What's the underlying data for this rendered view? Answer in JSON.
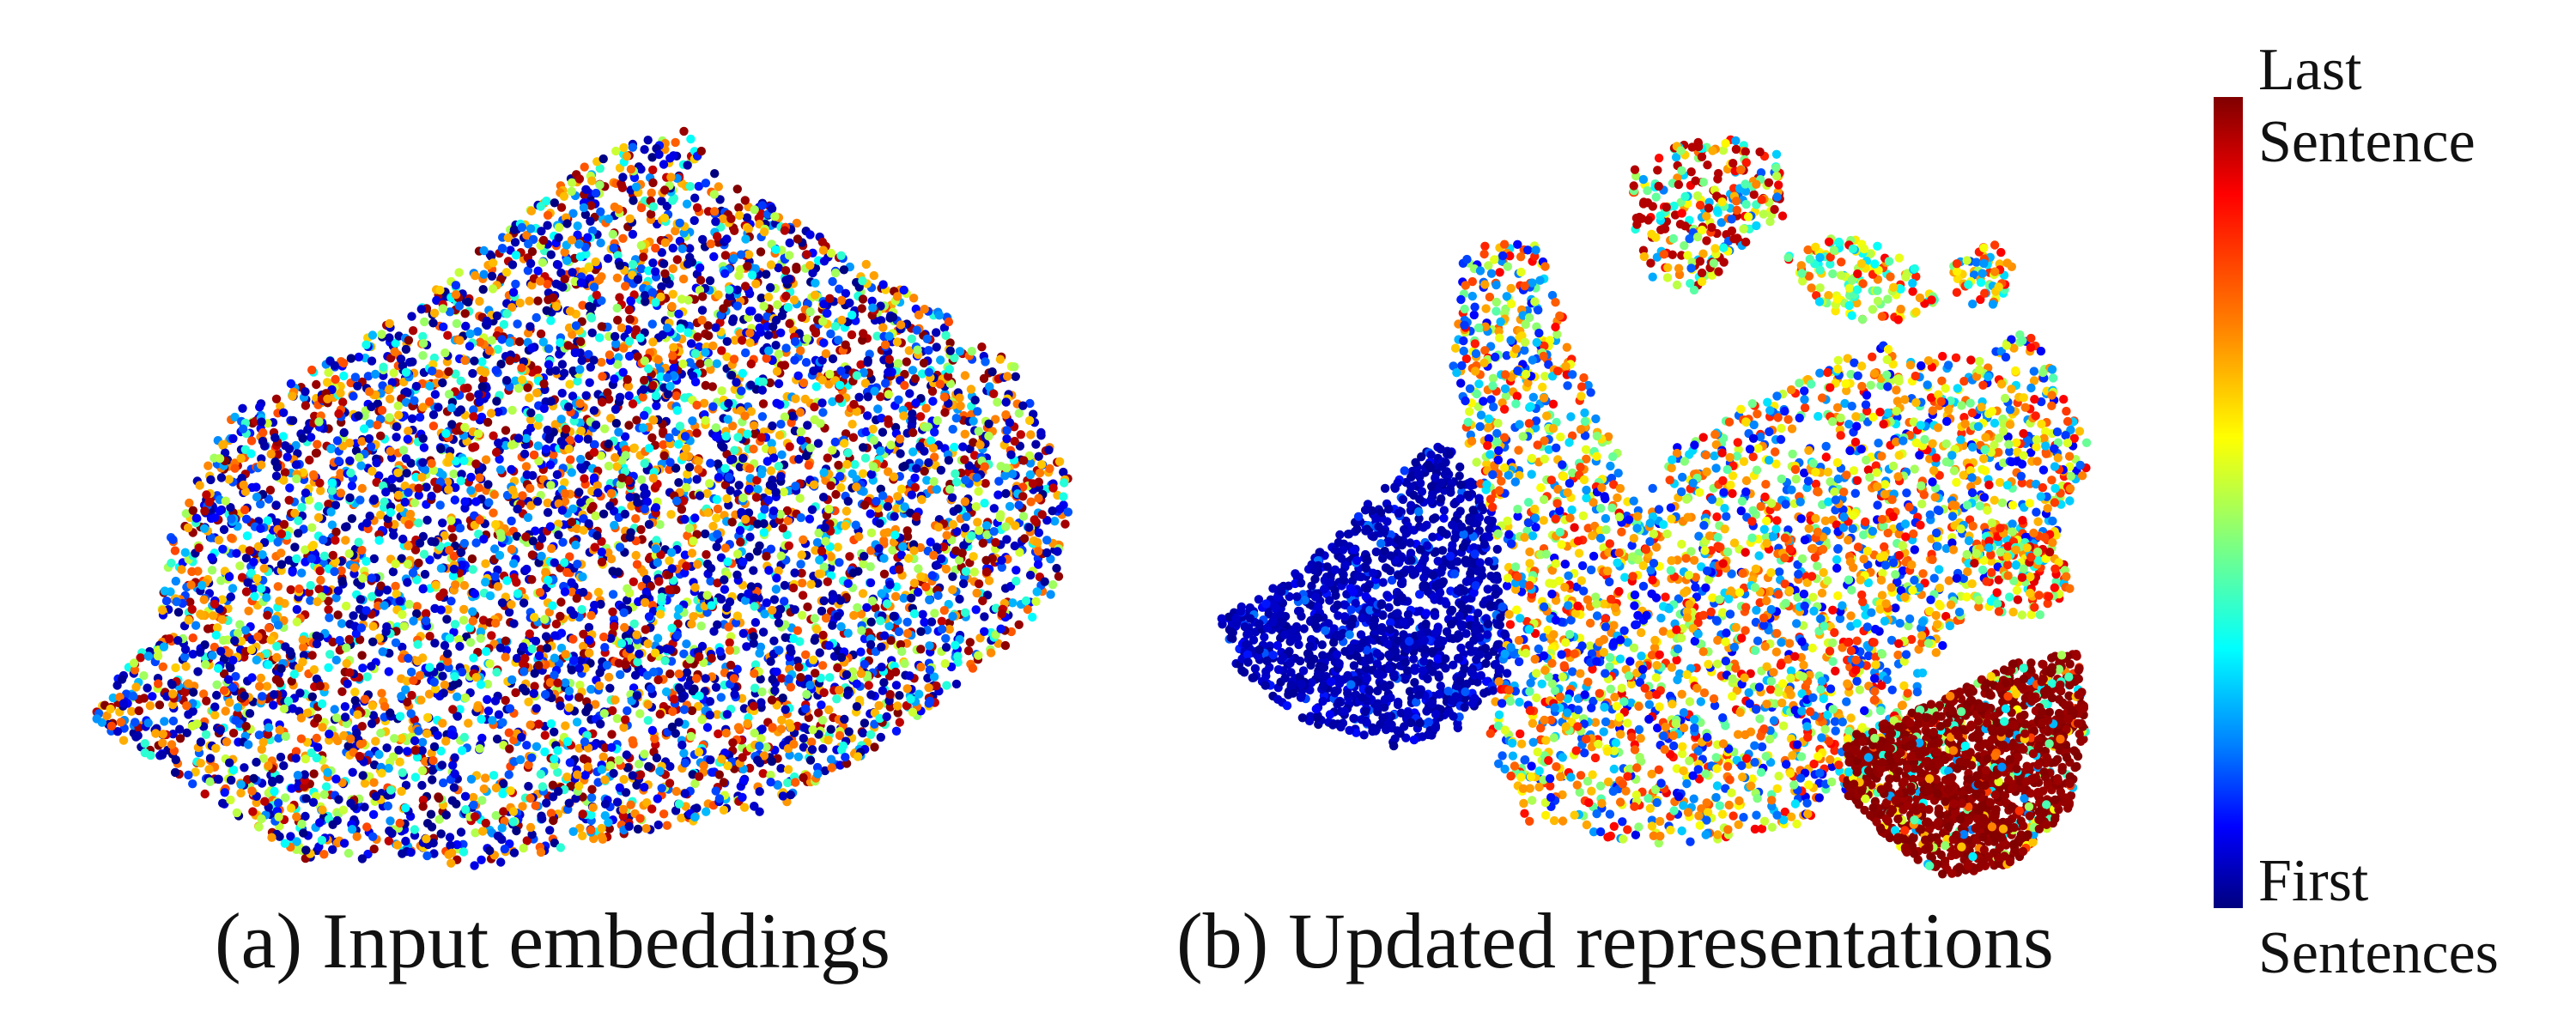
{
  "chart_data": [
    {
      "type": "scatter",
      "title": "(a) Input embeddings",
      "description_colors": "points colored by sentence position, thoroughly mixed",
      "seed": 7,
      "colorscale": "jet"
    },
    {
      "type": "scatter",
      "title": "(b) Updated representations",
      "seed": 19,
      "colorscale": "jet"
    }
  ],
  "colorbar": {
    "top_label": [
      "Last",
      "Sentence"
    ],
    "bottom_label": [
      "First",
      "Sentences"
    ],
    "colors": [
      "#800000",
      "#ff0000",
      "#ff7f00",
      "#ffff00",
      "#7fff7f",
      "#00ffff",
      "#007fff",
      "#0000ff",
      "#00007f"
    ]
  }
}
